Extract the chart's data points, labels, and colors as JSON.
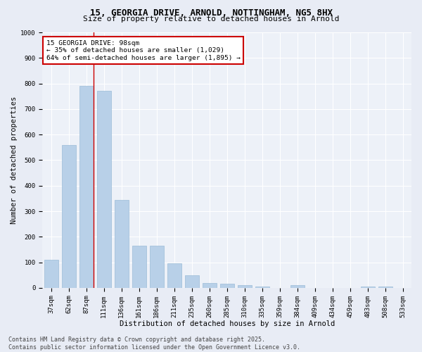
{
  "title_line1": "15, GEORGIA DRIVE, ARNOLD, NOTTINGHAM, NG5 8HX",
  "title_line2": "Size of property relative to detached houses in Arnold",
  "categories": [
    "37sqm",
    "62sqm",
    "87sqm",
    "111sqm",
    "136sqm",
    "161sqm",
    "186sqm",
    "211sqm",
    "235sqm",
    "260sqm",
    "285sqm",
    "310sqm",
    "335sqm",
    "359sqm",
    "384sqm",
    "409sqm",
    "434sqm",
    "459sqm",
    "483sqm",
    "508sqm",
    "533sqm"
  ],
  "values": [
    110,
    560,
    790,
    770,
    345,
    165,
    165,
    95,
    50,
    20,
    15,
    10,
    5,
    0,
    10,
    0,
    0,
    0,
    5,
    5,
    0
  ],
  "bar_color": "#b8d0e8",
  "bar_edge_color": "#9bbcd8",
  "vline_color": "#cc0000",
  "xlabel": "Distribution of detached houses by size in Arnold",
  "ylabel": "Number of detached properties",
  "ylim": [
    0,
    1000
  ],
  "yticks": [
    0,
    100,
    200,
    300,
    400,
    500,
    600,
    700,
    800,
    900,
    1000
  ],
  "annotation_title": "15 GEORGIA DRIVE: 98sqm",
  "annotation_line1": "← 35% of detached houses are smaller (1,029)",
  "annotation_line2": "64% of semi-detached houses are larger (1,895) →",
  "annotation_box_color": "#ffffff",
  "annotation_box_edge": "#cc0000",
  "footer_line1": "Contains HM Land Registry data © Crown copyright and database right 2025.",
  "footer_line2": "Contains public sector information licensed under the Open Government Licence v3.0.",
  "background_color": "#e8ecf5",
  "plot_bg_color": "#edf1f8",
  "grid_color": "#ffffff",
  "title_fontsize": 9,
  "subtitle_fontsize": 8,
  "axis_label_fontsize": 7.5,
  "tick_fontsize": 6.5,
  "annotation_fontsize": 6.8,
  "footer_fontsize": 6
}
